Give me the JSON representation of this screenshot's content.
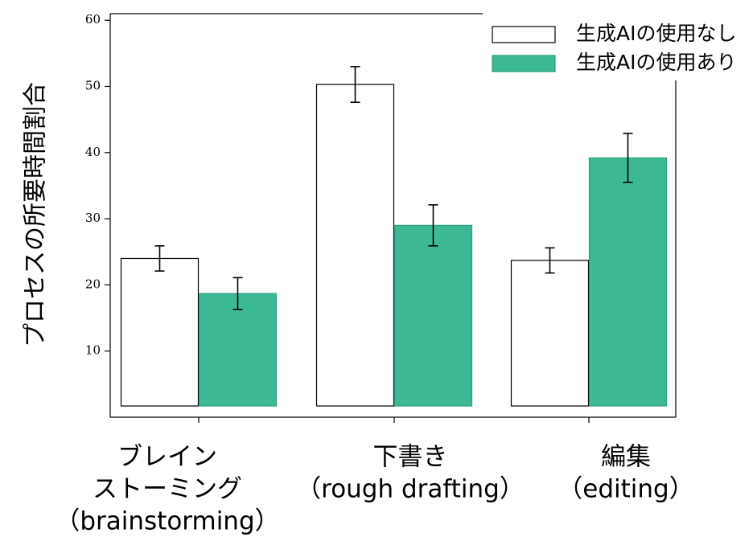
{
  "chart_data": {
    "type": "bar",
    "ylabel": "プロセスの所要時間割合",
    "xlabel": "",
    "ylim": [
      0,
      61
    ],
    "yticks": [
      10,
      20,
      30,
      40,
      50,
      60
    ],
    "grid": false,
    "legend_position": "top-right",
    "categories": [
      [
        "ブレイン",
        "ストーミング",
        "（brainstorming）"
      ],
      [
        "下書き",
        "（rough drafting）"
      ],
      [
        "編集",
        "（editing）"
      ]
    ],
    "series": [
      {
        "name": "生成AIの使用なし",
        "values": [
          24,
          50.3,
          23.7
        ],
        "errors": [
          1.9,
          2.7,
          1.9
        ],
        "color": "#ffffff",
        "stroke": "#000000"
      },
      {
        "name": "生成AIの使用あり",
        "values": [
          18.7,
          29,
          39.2
        ],
        "errors": [
          2.4,
          3.1,
          3.7
        ],
        "color": "#3cb895",
        "stroke": "#2aa17f"
      }
    ]
  }
}
